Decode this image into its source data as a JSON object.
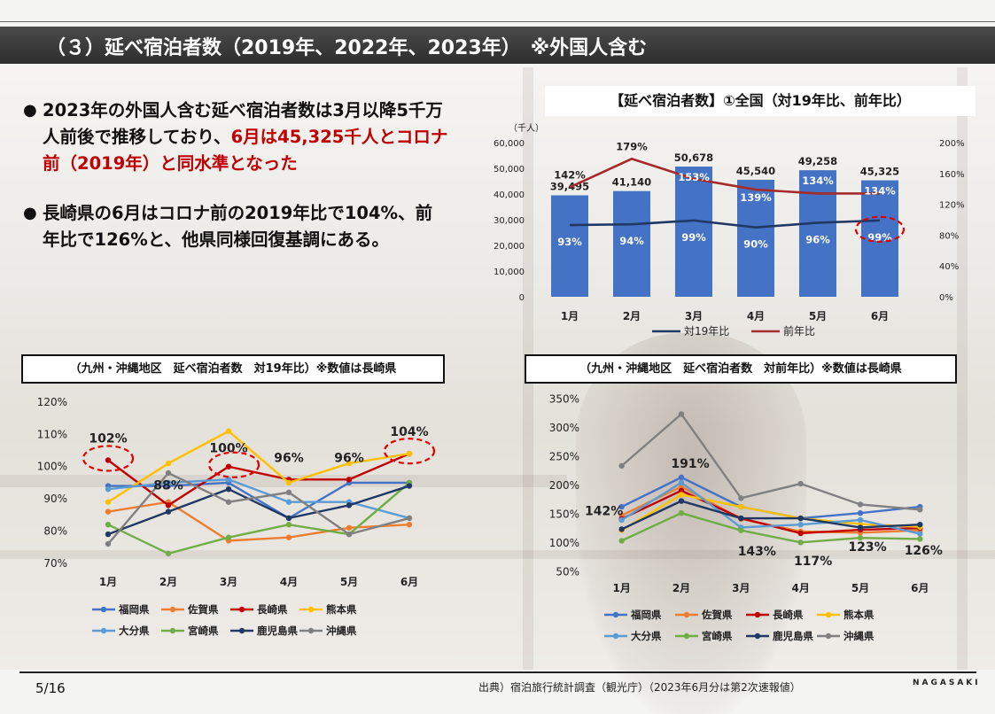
{
  "title": "（３）延べ宿泊者数（2019年、2022年、2023年）　※外国人含む",
  "bullets": [
    {
      "text_a": "2023年の外国人含む延べ宿泊者数は3月以降5千万人前後で推移しており、",
      "text_b": "6月は45,325千人とコロナ前（2019年）と同水準となった"
    },
    {
      "text_a": "長崎県の6月はコロナ前の2019年比で104%、前年比で126%と、他県同様回復基調にある。"
    }
  ],
  "chart_top_title": "【延べ宿泊者数】①全国（対19年比、前年比）",
  "chart_left_caption": "（九州・沖縄地区　延べ宿泊者数　対19年比）※数値は長崎県",
  "chart_right_caption": "（九州・沖縄地区　延べ宿泊者数　対前年比）※数値は長崎県",
  "footer": {
    "page": "5/16",
    "source": "出典）宿泊旅行統計調査（観光庁）（2023年6月分は第2次速報値）",
    "brand": "NAGASAKI"
  },
  "colors": {
    "bar": "#4472c4",
    "vs2019": "#1f3864",
    "yoy": "#a52a2a",
    "highlight": "#e00000"
  },
  "chart_data": [
    {
      "type": "bar",
      "title": "【延べ宿泊者数】①全国（対19年比、前年比）",
      "ylabel": "（千人）",
      "categories": [
        "1月",
        "2月",
        "3月",
        "4月",
        "5月",
        "6月"
      ],
      "values": [
        39495,
        41140,
        50678,
        45540,
        49258,
        45325
      ],
      "value_labels": [
        "39,495",
        "41,140",
        "50,678",
        "45,540",
        "49,258",
        "45,325"
      ],
      "ylim": [
        0,
        60000
      ],
      "yticks": [
        "0",
        "10,000",
        "20,000",
        "30,000",
        "40,000",
        "50,000",
        "60,000"
      ],
      "y2lim": [
        0,
        200
      ],
      "y2ticks": [
        "0%",
        "40%",
        "80%",
        "120%",
        "160%",
        "200%"
      ],
      "series": [
        {
          "name": "対19年比",
          "axis": "right",
          "values": [
            93,
            94,
            99,
            90,
            96,
            99
          ],
          "labels": [
            "93%",
            "94%",
            "99%",
            "90%",
            "96%",
            "99%"
          ]
        },
        {
          "name": "前年比",
          "axis": "right",
          "values": [
            142,
            179,
            153,
            139,
            134,
            134
          ],
          "labels": [
            "142%",
            "179%",
            "153%",
            "139%",
            "134%",
            "134%"
          ]
        }
      ],
      "legend": "bottom",
      "highlighted": [
        "99%"
      ]
    },
    {
      "type": "line",
      "title": "",
      "categories": [
        "1月",
        "2月",
        "3月",
        "4月",
        "5月",
        "6月"
      ],
      "ylim": [
        65,
        120
      ],
      "yticks": [
        "70%",
        "80%",
        "90%",
        "100%",
        "110%",
        "120%"
      ],
      "series": [
        {
          "name": "福岡県",
          "color": "#4472c4",
          "values": [
            94,
            94,
            95,
            84,
            95,
            95
          ]
        },
        {
          "name": "佐賀県",
          "color": "#ed7d31",
          "values": [
            86,
            89,
            77,
            78,
            81,
            82
          ]
        },
        {
          "name": "長崎県",
          "color": "#c00000",
          "values": [
            102,
            88,
            100,
            96,
            96,
            104
          ]
        },
        {
          "name": "熊本県",
          "color": "#ffc000",
          "values": [
            89,
            101,
            111,
            95,
            101,
            104
          ]
        },
        {
          "name": "大分県",
          "color": "#5b9bd5",
          "values": [
            93,
            95,
            96,
            89,
            89,
            84
          ]
        },
        {
          "name": "宮崎県",
          "color": "#70ad47",
          "values": [
            82,
            73,
            78,
            82,
            79,
            95
          ]
        },
        {
          "name": "鹿児島県",
          "color": "#1f3864",
          "values": [
            79,
            86,
            93,
            84,
            88,
            94
          ]
        },
        {
          "name": "沖縄県",
          "color": "#808080",
          "values": [
            76,
            98,
            89,
            92,
            79,
            84
          ]
        }
      ],
      "data_labels": [
        "102%",
        "88%",
        "100%",
        "96%",
        "96%",
        "104%"
      ],
      "highlighted": [
        "102%",
        "100%",
        "104%"
      ],
      "legend": "bottom"
    },
    {
      "type": "line",
      "title": "",
      "categories": [
        "1月",
        "2月",
        "3月",
        "4月",
        "5月",
        "6月"
      ],
      "ylim": [
        40,
        360
      ],
      "yticks": [
        "50%",
        "100%",
        "150%",
        "200%",
        "250%",
        "300%",
        "350%"
      ],
      "series": [
        {
          "name": "福岡県",
          "color": "#4472c4",
          "values": [
            163,
            214,
            163,
            143,
            152,
            163
          ]
        },
        {
          "name": "佐賀県",
          "color": "#ed7d31",
          "values": [
            148,
            198,
            142,
            120,
            118,
            122
          ]
        },
        {
          "name": "長崎県",
          "color": "#c00000",
          "values": [
            142,
            191,
            143,
            117,
            123,
            126
          ]
        },
        {
          "name": "熊本県",
          "color": "#ffc000",
          "values": [
            122,
            184,
            163,
            143,
            133,
            128
          ]
        },
        {
          "name": "大分県",
          "color": "#5b9bd5",
          "values": [
            140,
            205,
            127,
            132,
            140,
            116
          ]
        },
        {
          "name": "宮崎県",
          "color": "#70ad47",
          "values": [
            104,
            152,
            122,
            101,
            109,
            107
          ]
        },
        {
          "name": "鹿児島県",
          "color": "#1f3864",
          "values": [
            124,
            173,
            143,
            143,
            127,
            132
          ]
        },
        {
          "name": "沖縄県",
          "color": "#808080",
          "values": [
            234,
            324,
            178,
            203,
            167,
            158
          ]
        }
      ],
      "data_labels": [
        "142%",
        "191%",
        "143%",
        "117%",
        "123%",
        "126%"
      ],
      "legend": "bottom"
    }
  ]
}
